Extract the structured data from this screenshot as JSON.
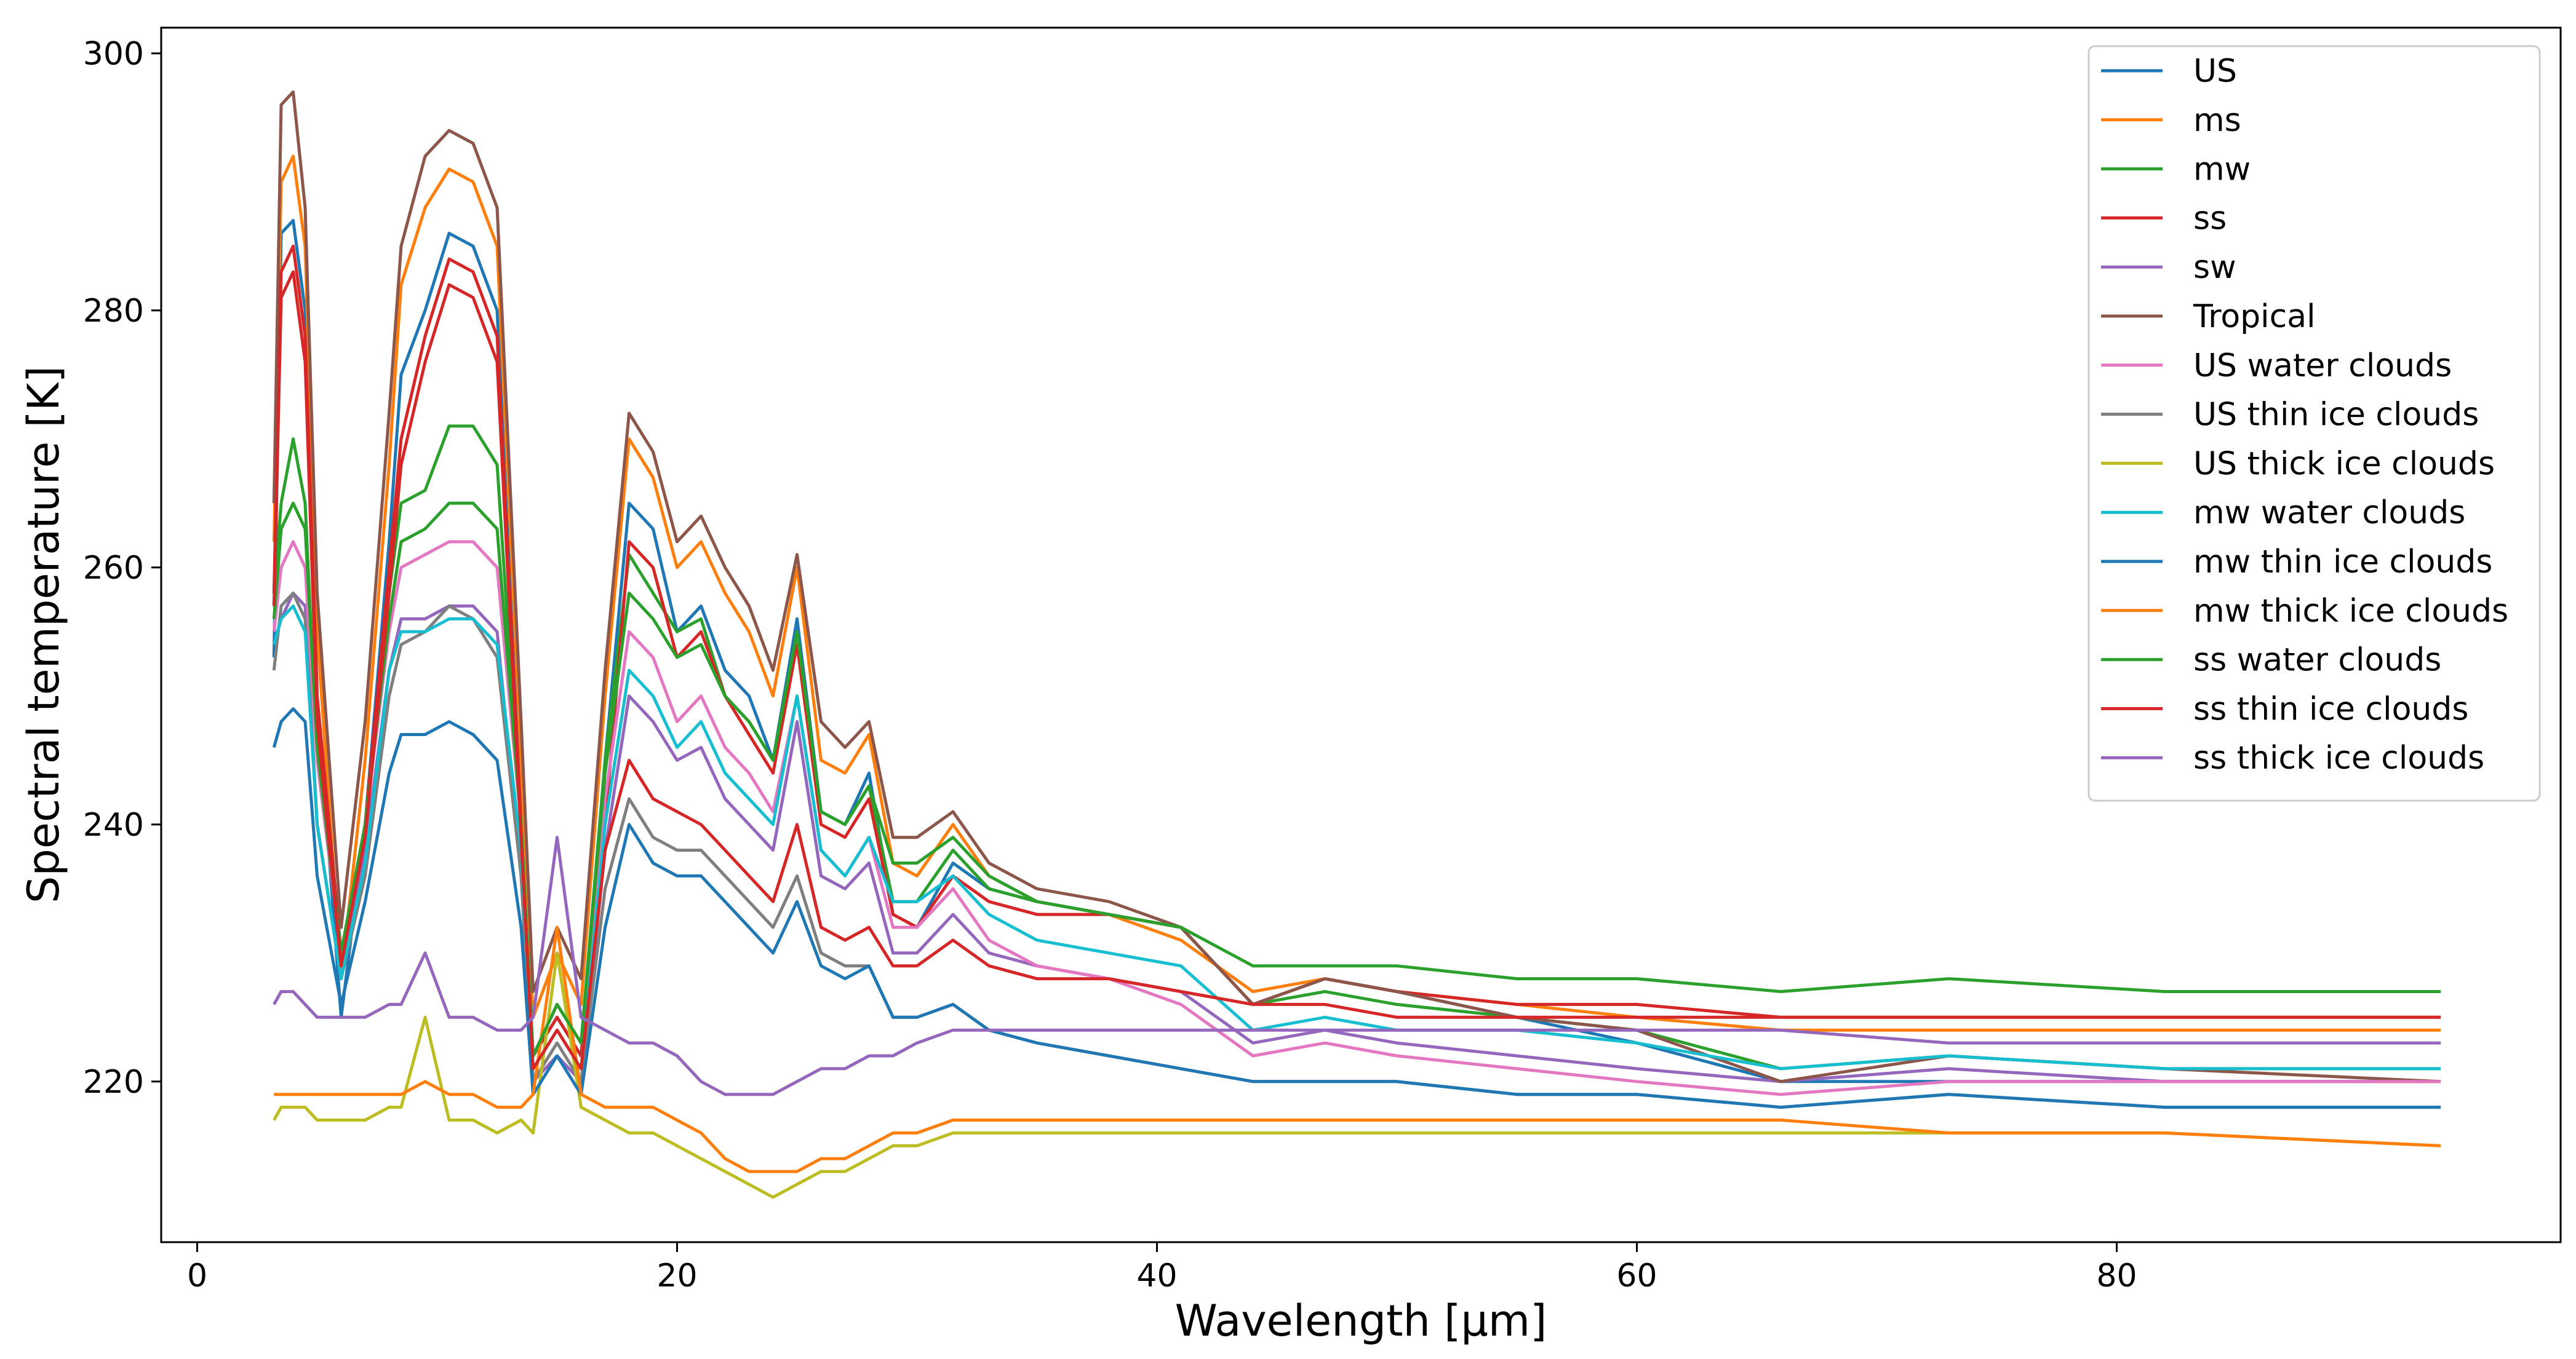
{
  "chart_data": {
    "type": "line",
    "title": "",
    "xlabel": "Wavelength [µm]",
    "ylabel": "Spectral temperature [K]",
    "xlim": [
      -1.5,
      98.5
    ],
    "ylim": [
      207.5,
      302
    ],
    "xticks": [
      0,
      20,
      40,
      60,
      80
    ],
    "yticks": [
      220,
      240,
      260,
      280,
      300
    ],
    "xtick_labels": [
      "0",
      "20",
      "40",
      "60",
      "80"
    ],
    "ytick_labels": [
      "220",
      "240",
      "260",
      "280",
      "300"
    ],
    "grid": false,
    "legend_position": "top-right",
    "x": [
      3.2,
      3.5,
      4.0,
      4.5,
      5.0,
      6.0,
      7.0,
      8.0,
      8.5,
      9.5,
      10.5,
      11.5,
      12.5,
      13.5,
      14.0,
      15.0,
      16.0,
      17.0,
      18.0,
      19.0,
      20.0,
      21.0,
      22.0,
      23.0,
      24.0,
      25.0,
      26.0,
      27.0,
      28.0,
      29.0,
      30.0,
      31.5,
      33.0,
      35.0,
      38.0,
      41.0,
      44.0,
      47.0,
      50.0,
      55.0,
      60.0,
      66.0,
      73.0,
      82.0,
      93.5
    ],
    "series": [
      {
        "name": "US",
        "color": "#1f77b4",
        "values": [
          253,
          286,
          287,
          280,
          250,
          225,
          240,
          262,
          275,
          280,
          286,
          285,
          280,
          240,
          222,
          225,
          222,
          245,
          265,
          263,
          255,
          257,
          252,
          250,
          245,
          256,
          241,
          240,
          244,
          233,
          232,
          237,
          235,
          234,
          233,
          232,
          226,
          228,
          227,
          225,
          223,
          220,
          220,
          220,
          220
        ]
      },
      {
        "name": "ms",
        "color": "#ff7f0e",
        "values": [
          262,
          290,
          292,
          285,
          255,
          228,
          245,
          268,
          282,
          288,
          291,
          290,
          285,
          245,
          225,
          230,
          226,
          250,
          270,
          267,
          260,
          262,
          258,
          255,
          250,
          260,
          245,
          244,
          247,
          237,
          236,
          240,
          236,
          234,
          233,
          231,
          227,
          228,
          227,
          226,
          225,
          224,
          224,
          224,
          224
        ]
      },
      {
        "name": "mw",
        "color": "#2ca02c",
        "values": [
          258,
          265,
          270,
          265,
          245,
          230,
          240,
          258,
          265,
          266,
          271,
          271,
          268,
          240,
          222,
          226,
          223,
          245,
          261,
          258,
          255,
          256,
          250,
          248,
          245,
          255,
          241,
          240,
          243,
          234,
          234,
          238,
          235,
          234,
          233,
          232,
          226,
          227,
          226,
          225,
          224,
          221,
          222,
          221,
          221
        ]
      },
      {
        "name": "ss",
        "color": "#d62728",
        "values": [
          258,
          283,
          285,
          278,
          250,
          230,
          240,
          260,
          270,
          278,
          284,
          283,
          278,
          240,
          222,
          225,
          222,
          240,
          262,
          260,
          253,
          255,
          250,
          247,
          244,
          254,
          240,
          239,
          242,
          233,
          232,
          236,
          234,
          233,
          233,
          232,
          226,
          228,
          227,
          226,
          226,
          225,
          225,
          225,
          225
        ]
      },
      {
        "name": "sw",
        "color": "#9467bd",
        "values": [
          254,
          256,
          258,
          257,
          240,
          228,
          238,
          252,
          256,
          256,
          257,
          257,
          255,
          236,
          220,
          222,
          220,
          238,
          250,
          248,
          245,
          246,
          242,
          240,
          238,
          248,
          236,
          235,
          237,
          230,
          230,
          233,
          230,
          229,
          228,
          227,
          223,
          224,
          223,
          222,
          221,
          220,
          221,
          220,
          220
        ]
      },
      {
        "name": "Tropical",
        "color": "#8c564b",
        "values": [
          265,
          296,
          297,
          288,
          258,
          232,
          248,
          272,
          285,
          292,
          294,
          293,
          288,
          248,
          227,
          232,
          228,
          252,
          272,
          269,
          262,
          264,
          260,
          257,
          252,
          261,
          248,
          246,
          248,
          239,
          239,
          241,
          237,
          235,
          234,
          232,
          226,
          228,
          227,
          225,
          224,
          220,
          222,
          221,
          220
        ]
      },
      {
        "name": "US water clouds",
        "color": "#e377c2",
        "values": [
          255,
          260,
          262,
          260,
          245,
          230,
          240,
          255,
          260,
          261,
          262,
          262,
          260,
          240,
          222,
          226,
          223,
          242,
          255,
          253,
          248,
          250,
          246,
          244,
          241,
          250,
          238,
          236,
          239,
          232,
          232,
          235,
          231,
          229,
          228,
          226,
          222,
          223,
          222,
          221,
          220,
          219,
          220,
          220,
          220
        ]
      },
      {
        "name": "US thin ice clouds",
        "color": "#7f7f7f",
        "values": [
          252,
          257,
          258,
          256,
          240,
          228,
          236,
          250,
          254,
          255,
          257,
          256,
          253,
          236,
          220,
          223,
          220,
          235,
          242,
          239,
          238,
          238,
          236,
          234,
          232,
          236,
          230,
          229,
          229,
          225,
          225,
          226,
          224,
          223,
          222,
          221,
          220,
          220,
          220,
          219,
          219,
          218,
          219,
          218,
          218
        ]
      },
      {
        "name": "US thick ice clouds",
        "color": "#bcbd22",
        "values": [
          217,
          218,
          218,
          218,
          217,
          217,
          217,
          218,
          218,
          225,
          217,
          217,
          216,
          217,
          216,
          230,
          218,
          217,
          216,
          216,
          215,
          214,
          213,
          212,
          211,
          212,
          213,
          213,
          214,
          215,
          215,
          216,
          216,
          216,
          216,
          216,
          216,
          216,
          216,
          216,
          216,
          216,
          216,
          216,
          215
        ]
      },
      {
        "name": "mw water clouds",
        "color": "#17becf",
        "values": [
          254,
          256,
          257,
          255,
          240,
          228,
          237,
          252,
          255,
          255,
          256,
          256,
          254,
          238,
          221,
          224,
          221,
          240,
          252,
          250,
          246,
          248,
          244,
          242,
          240,
          250,
          238,
          236,
          239,
          234,
          234,
          236,
          233,
          231,
          230,
          229,
          224,
          225,
          224,
          224,
          223,
          221,
          222,
          221,
          221
        ]
      },
      {
        "name": "mw thin ice clouds",
        "color": "#1f77b4",
        "values": [
          246,
          248,
          249,
          248,
          236,
          226,
          234,
          244,
          247,
          247,
          248,
          247,
          245,
          232,
          219,
          222,
          219,
          232,
          240,
          237,
          236,
          236,
          234,
          232,
          230,
          234,
          229,
          228,
          229,
          225,
          225,
          226,
          224,
          223,
          222,
          221,
          220,
          220,
          220,
          219,
          219,
          218,
          219,
          218,
          218
        ]
      },
      {
        "name": "mw thick ice clouds",
        "color": "#ff7f0e",
        "values": [
          219,
          219,
          219,
          219,
          219,
          219,
          219,
          219,
          219,
          220,
          219,
          219,
          218,
          218,
          219,
          232,
          219,
          218,
          218,
          218,
          217,
          216,
          214,
          213,
          213,
          213,
          214,
          214,
          215,
          216,
          216,
          217,
          217,
          217,
          217,
          217,
          217,
          217,
          217,
          217,
          217,
          217,
          216,
          216,
          215
        ]
      },
      {
        "name": "ss water clouds",
        "color": "#2ca02c",
        "values": [
          256,
          263,
          265,
          263,
          246,
          230,
          240,
          256,
          262,
          263,
          265,
          265,
          263,
          240,
          222,
          226,
          223,
          244,
          258,
          256,
          253,
          254,
          250,
          248,
          245,
          255,
          241,
          240,
          243,
          237,
          237,
          239,
          236,
          234,
          233,
          232,
          229,
          229,
          229,
          228,
          228,
          227,
          228,
          227,
          227
        ]
      },
      {
        "name": "ss thin ice clouds",
        "color": "#d62728",
        "values": [
          257,
          281,
          283,
          276,
          248,
          229,
          239,
          258,
          268,
          276,
          282,
          281,
          276,
          239,
          221,
          224,
          221,
          238,
          245,
          242,
          241,
          240,
          238,
          236,
          234,
          240,
          232,
          231,
          232,
          229,
          229,
          231,
          229,
          228,
          228,
          227,
          226,
          226,
          225,
          225,
          225,
          225,
          225,
          225,
          225
        ]
      },
      {
        "name": "ss thick ice clouds",
        "color": "#9467bd",
        "values": [
          226,
          227,
          227,
          226,
          225,
          225,
          225,
          226,
          226,
          230,
          225,
          225,
          224,
          224,
          225,
          239,
          225,
          224,
          223,
          223,
          222,
          220,
          219,
          219,
          219,
          220,
          221,
          221,
          222,
          222,
          223,
          224,
          224,
          224,
          224,
          224,
          224,
          224,
          224,
          224,
          224,
          224,
          223,
          223,
          223
        ]
      }
    ]
  }
}
